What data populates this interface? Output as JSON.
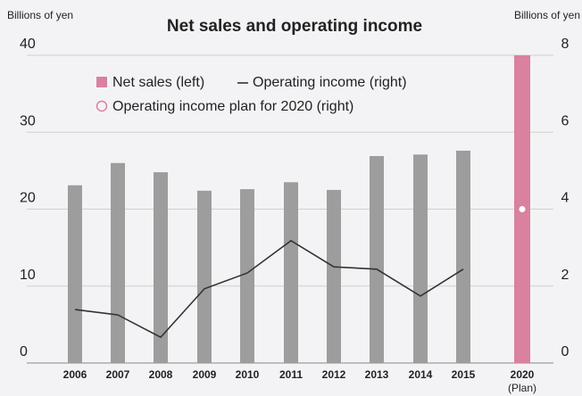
{
  "chart_data": {
    "type": "bar_line",
    "title": "Net sales and operating income",
    "y_axis_label": "Billions of yen",
    "y2_axis_label": "Billions of yen",
    "categories": [
      "2006",
      "2007",
      "2008",
      "2009",
      "2010",
      "2011",
      "2012",
      "2013",
      "2014",
      "2015",
      "2020"
    ],
    "plan_label": "(Plan)",
    "ylim": [
      0,
      40
    ],
    "yticks": [
      0,
      10,
      20,
      30,
      40
    ],
    "y2lim": [
      0,
      8
    ],
    "y2ticks": [
      0,
      2,
      4,
      6,
      8
    ],
    "grid": true,
    "series": [
      {
        "name": "Net sales (left)",
        "color": "#d9819e",
        "colors": [
          "#9d9d9d",
          "#9d9d9d",
          "#9d9d9d",
          "#9d9d9d",
          "#9d9d9d",
          "#9d9d9d",
          "#9d9d9d",
          "#9d9d9d",
          "#9d9d9d",
          "#9d9d9d",
          "#d9819e"
        ],
        "values": [
          23.1,
          26.0,
          24.8,
          22.4,
          22.6,
          23.5,
          22.5,
          26.9,
          27.1,
          27.6,
          40
        ]
      },
      {
        "name": "Operating income (right)",
        "color": "#333333",
        "axis": "y2",
        "values": [
          1.39,
          1.25,
          0.67,
          1.93,
          2.34,
          3.18,
          2.5,
          2.44,
          1.74,
          2.44,
          null
        ]
      },
      {
        "name": "Operating income plan for 2020 (right)",
        "color": "#d9819e",
        "axis": "y2",
        "values": [
          null,
          null,
          null,
          null,
          null,
          null,
          null,
          null,
          null,
          null,
          4
        ]
      }
    ]
  }
}
